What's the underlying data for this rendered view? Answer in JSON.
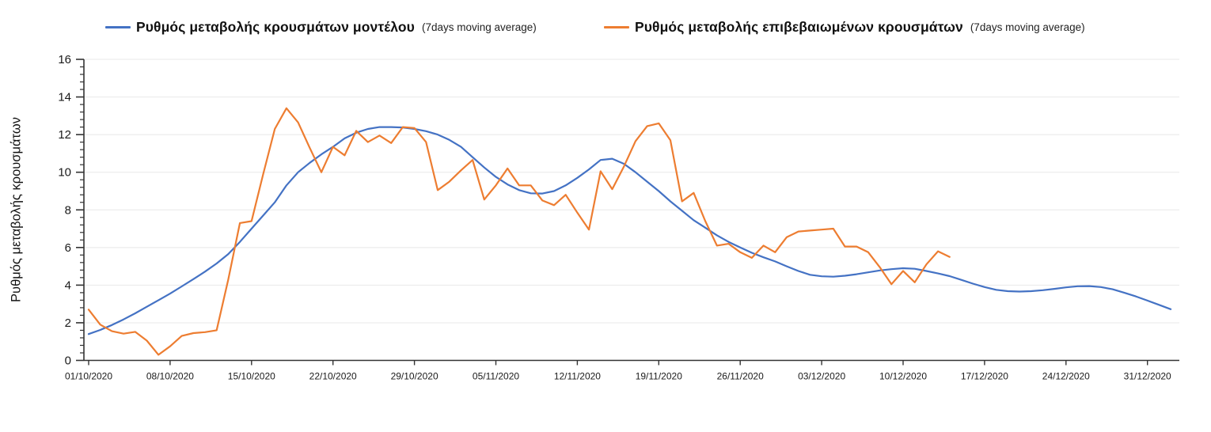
{
  "page": {
    "background": "#ffffff"
  },
  "legend": {
    "items": [
      {
        "label": "Ρυθμός μεταβολής κρουσμάτων μοντέλου",
        "suffix": "(7days moving average)",
        "color": "#4472c4"
      },
      {
        "label": "Ρυθμός μεταβολής επιβεβαιωμένων κρουσμάτων",
        "suffix": "(7days moving average)",
        "color": "#ed7d31"
      }
    ]
  },
  "y_axis_title": "Ρυθμός μεταβολής κρουσμάτων",
  "colors": {
    "model_line": "#4472c4",
    "confirmed_line": "#ed7d31",
    "gridline": "#e8e8e8",
    "axis": "#333333",
    "tick_label": "#1a1a1a"
  },
  "chart_data": {
    "type": "line",
    "title": "",
    "xlabel": "",
    "ylabel": "Ρυθμός μεταβολής κρουσμάτων",
    "ylim": [
      0,
      16
    ],
    "y_tick_step": 2,
    "y_minor_tick_step": 0.4,
    "y_tick_labels": [
      "0",
      "2",
      "4",
      "6",
      "8",
      "10",
      "12",
      "14",
      "16"
    ],
    "grid": "horizontal-major",
    "legend_position": "top",
    "x_unit": "day",
    "x_start_date": "01/10/2020",
    "x_tick_labels": [
      "01/10/2020",
      "08/10/2020",
      "15/10/2020",
      "22/10/2020",
      "29/10/2020",
      "05/11/2020",
      "12/11/2020",
      "19/11/2020",
      "26/11/2020",
      "03/12/2020",
      "10/12/2020",
      "17/12/2020",
      "24/12/2020",
      "31/12/2020"
    ],
    "x_tick_day_indices": [
      0,
      7,
      14,
      21,
      28,
      35,
      42,
      49,
      56,
      63,
      70,
      77,
      84,
      91
    ],
    "series": [
      {
        "name": "Ρυθμός μεταβολής κρουσμάτων μοντέλου (7days moving average)",
        "color": "#4472c4",
        "start_day_index": 0,
        "values": [
          1.4,
          1.62,
          1.88,
          2.18,
          2.5,
          2.85,
          3.2,
          3.55,
          3.93,
          4.32,
          4.72,
          5.15,
          5.65,
          6.3,
          7.0,
          7.7,
          8.4,
          9.3,
          10.0,
          10.5,
          10.95,
          11.35,
          11.8,
          12.1,
          12.3,
          12.4,
          12.4,
          12.38,
          12.3,
          12.18,
          12.0,
          11.72,
          11.35,
          10.8,
          10.25,
          9.75,
          9.35,
          9.05,
          8.88,
          8.87,
          9.0,
          9.3,
          9.7,
          10.15,
          10.65,
          10.72,
          10.45,
          10.0,
          9.5,
          9.0,
          8.45,
          7.95,
          7.45,
          7.05,
          6.65,
          6.3,
          6.0,
          5.72,
          5.48,
          5.26,
          5.0,
          4.75,
          4.55,
          4.47,
          4.45,
          4.5,
          4.58,
          4.68,
          4.78,
          4.85,
          4.9,
          4.87,
          4.75,
          4.62,
          4.48,
          4.28,
          4.08,
          3.9,
          3.75,
          3.68,
          3.66,
          3.68,
          3.73,
          3.8,
          3.88,
          3.94,
          3.95,
          3.9,
          3.78,
          3.6,
          3.4,
          3.18,
          2.95,
          2.72
        ]
      },
      {
        "name": "Ρυθμός μεταβολής επιβεβαιωμένων κρουσμάτων (7days moving average)",
        "color": "#ed7d31",
        "start_day_index": 0,
        "values": [
          2.7,
          1.9,
          1.55,
          1.42,
          1.52,
          1.05,
          0.3,
          0.75,
          1.3,
          1.45,
          1.5,
          1.6,
          4.3,
          7.3,
          7.4,
          9.9,
          12.3,
          13.4,
          12.65,
          11.3,
          10.0,
          11.35,
          10.9,
          12.2,
          11.6,
          11.95,
          11.55,
          12.4,
          12.35,
          11.6,
          9.05,
          9.5,
          10.1,
          10.65,
          8.55,
          9.3,
          10.2,
          9.3,
          9.3,
          8.5,
          8.25,
          8.8,
          7.85,
          6.95,
          10.05,
          9.1,
          10.3,
          11.65,
          12.45,
          12.6,
          11.7,
          8.45,
          8.9,
          7.4,
          6.1,
          6.2,
          5.75,
          5.45,
          6.1,
          5.75,
          6.55,
          6.85,
          6.9,
          6.95,
          7.0,
          6.05,
          6.05,
          5.75,
          4.95,
          4.05,
          4.75,
          4.15,
          5.1,
          5.8,
          5.5
        ]
      }
    ]
  }
}
